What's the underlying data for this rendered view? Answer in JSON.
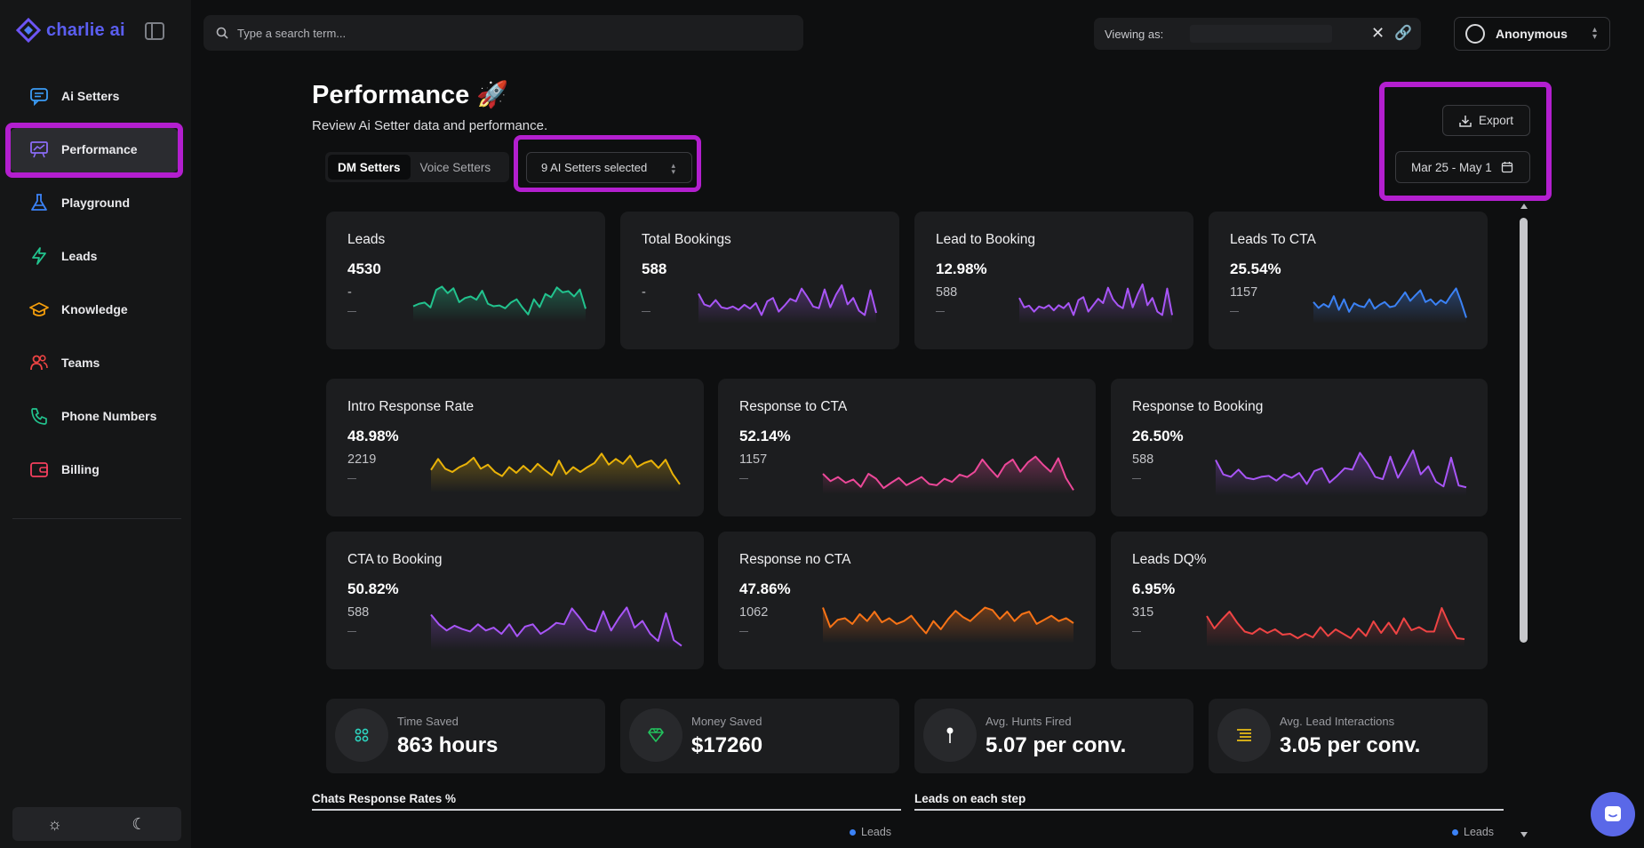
{
  "app": {
    "logo_text": "charlie ai"
  },
  "sidebar": {
    "items": [
      {
        "label": "Ai Setters",
        "icon": "chat-icon"
      },
      {
        "label": "Performance",
        "icon": "presentation-chart-icon"
      },
      {
        "label": "Playground",
        "icon": "flask-icon"
      },
      {
        "label": "Leads",
        "icon": "lightning-icon"
      },
      {
        "label": "Knowledge",
        "icon": "graduation-cap-icon"
      },
      {
        "label": "Teams",
        "icon": "users-icon"
      },
      {
        "label": "Phone Numbers",
        "icon": "phone-icon"
      },
      {
        "label": "Billing",
        "icon": "wallet-icon"
      }
    ],
    "active_index": 1
  },
  "search": {
    "placeholder": "Type a search term..."
  },
  "viewing": {
    "label": "Viewing as:"
  },
  "user": {
    "name": "Anonymous"
  },
  "page": {
    "title": "Performance",
    "subtitle": "Review Ai Setter data and performance.",
    "tabs": [
      "DM Setters",
      "Voice Setters"
    ],
    "active_tab": 0,
    "setters_selected": "9 AI Setters selected",
    "export_label": "Export",
    "date_range": "Mar 25 - May 1"
  },
  "stats_row1": [
    {
      "title": "Leads",
      "value": "4530",
      "sub": "-",
      "color": "#22c38e",
      "spark": [
        0.38,
        0.44,
        0.47,
        0.35,
        0.78,
        0.86,
        0.7,
        0.82,
        0.48,
        0.58,
        0.62,
        0.54,
        0.76,
        0.44,
        0.38,
        0.4,
        0.33,
        0.47,
        0.55,
        0.35,
        0.18,
        0.55,
        0.36,
        0.68,
        0.6,
        0.84,
        0.72,
        0.75,
        0.62,
        0.79,
        0.32
      ]
    },
    {
      "title": "Total Bookings",
      "value": "588",
      "sub": "-",
      "color": "#a855f7",
      "spark": [
        0.7,
        0.45,
        0.4,
        0.55,
        0.38,
        0.35,
        0.4,
        0.32,
        0.44,
        0.35,
        0.48,
        0.2,
        0.52,
        0.6,
        0.28,
        0.42,
        0.58,
        0.52,
        0.82,
        0.62,
        0.4,
        0.36,
        0.8,
        0.38,
        0.68,
        0.9,
        0.45,
        0.6,
        0.3,
        0.2,
        0.78,
        0.25
      ]
    },
    {
      "title": "Lead to Booking",
      "value": "12.98%",
      "sub": "588",
      "color": "#a855f7",
      "spark": [
        0.6,
        0.38,
        0.42,
        0.28,
        0.4,
        0.36,
        0.43,
        0.31,
        0.43,
        0.36,
        0.48,
        0.2,
        0.55,
        0.62,
        0.28,
        0.43,
        0.58,
        0.48,
        0.84,
        0.57,
        0.43,
        0.36,
        0.82,
        0.38,
        0.68,
        0.92,
        0.43,
        0.6,
        0.28,
        0.2,
        0.82,
        0.2
      ]
    },
    {
      "title": "Leads To CTA",
      "value": "25.54%",
      "sub": "1157",
      "color": "#3b82f6",
      "spark": [
        0.55,
        0.4,
        0.5,
        0.42,
        0.7,
        0.35,
        0.62,
        0.3,
        0.52,
        0.45,
        0.42,
        0.62,
        0.38,
        0.48,
        0.55,
        0.42,
        0.45,
        0.62,
        0.8,
        0.58,
        0.72,
        0.85,
        0.55,
        0.62,
        0.48,
        0.6,
        0.52,
        0.72,
        0.9,
        0.55,
        0.15
      ]
    }
  ],
  "stats_row2": [
    {
      "title": "Intro Response Rate",
      "value": "48.98%",
      "sub": "2219",
      "color": "#eab308",
      "spark": [
        0.55,
        0.82,
        0.58,
        0.5,
        0.62,
        0.7,
        0.85,
        0.58,
        0.68,
        0.5,
        0.4,
        0.62,
        0.48,
        0.65,
        0.5,
        0.7,
        0.55,
        0.42,
        0.78,
        0.45,
        0.62,
        0.5,
        0.62,
        0.72,
        0.95,
        0.68,
        0.82,
        0.7,
        0.9,
        0.62,
        0.72,
        0.78,
        0.6,
        0.8,
        0.45,
        0.2
      ]
    },
    {
      "title": "Response to CTA",
      "value": "52.14%",
      "sub": "1157",
      "color": "#ec4899",
      "spark": [
        0.5,
        0.32,
        0.42,
        0.28,
        0.36,
        0.18,
        0.5,
        0.38,
        0.15,
        0.28,
        0.4,
        0.22,
        0.32,
        0.42,
        0.25,
        0.22,
        0.38,
        0.3,
        0.48,
        0.42,
        0.55,
        0.85,
        0.62,
        0.42,
        0.72,
        0.85,
        0.55,
        0.78,
        0.92,
        0.72,
        0.55,
        0.88,
        0.4,
        0.1
      ]
    },
    {
      "title": "Response to Booking",
      "value": "26.50%",
      "sub": "588",
      "color": "#a855f7",
      "spark": [
        0.75,
        0.45,
        0.4,
        0.55,
        0.38,
        0.35,
        0.4,
        0.42,
        0.32,
        0.45,
        0.38,
        0.48,
        0.25,
        0.52,
        0.58,
        0.28,
        0.42,
        0.58,
        0.55,
        0.9,
        0.68,
        0.4,
        0.35,
        0.82,
        0.38,
        0.65,
        0.95,
        0.45,
        0.62,
        0.3,
        0.2,
        0.8,
        0.22,
        0.18
      ]
    }
  ],
  "stats_row3": [
    {
      "title": "CTA to Booking",
      "value": "50.82%",
      "sub": "588",
      "color": "#a855f7",
      "spark": [
        0.75,
        0.55,
        0.42,
        0.52,
        0.45,
        0.4,
        0.55,
        0.42,
        0.48,
        0.35,
        0.55,
        0.3,
        0.5,
        0.55,
        0.35,
        0.45,
        0.58,
        0.55,
        0.88,
        0.68,
        0.45,
        0.4,
        0.82,
        0.42,
        0.68,
        0.9,
        0.48,
        0.62,
        0.35,
        0.2,
        0.78,
        0.22,
        0.1
      ]
    },
    {
      "title": "Response no CTA",
      "value": "47.86%",
      "sub": "1062",
      "color": "#f97316",
      "spark": [
        0.88,
        0.4,
        0.58,
        0.62,
        0.48,
        0.72,
        0.55,
        0.78,
        0.52,
        0.62,
        0.48,
        0.55,
        0.68,
        0.45,
        0.25,
        0.55,
        0.35,
        0.6,
        0.8,
        0.65,
        0.55,
        0.72,
        0.88,
        0.82,
        0.6,
        0.78,
        0.55,
        0.72,
        0.78,
        0.48,
        0.58,
        0.68,
        0.55,
        0.62,
        0.5
      ]
    },
    {
      "title": "Leads DQ%",
      "value": "6.95%",
      "sub": "315",
      "color": "#ef4444",
      "spark": [
        0.7,
        0.42,
        0.62,
        0.8,
        0.55,
        0.35,
        0.3,
        0.42,
        0.32,
        0.4,
        0.28,
        0.3,
        0.2,
        0.3,
        0.22,
        0.45,
        0.25,
        0.4,
        0.3,
        0.2,
        0.42,
        0.25,
        0.58,
        0.32,
        0.55,
        0.3,
        0.65,
        0.38,
        0.45,
        0.35,
        0.35,
        0.88,
        0.5,
        0.2,
        0.18
      ]
    }
  ],
  "metrics": [
    {
      "label": "Time Saved",
      "value": "863 hours",
      "icon": "grid-icon",
      "color": "#2dd4bf"
    },
    {
      "label": "Money Saved",
      "value": "$17260",
      "icon": "diamond-icon",
      "color": "#22c55e"
    },
    {
      "label": "Avg. Hunts Fired",
      "value": "5.07 per conv.",
      "icon": "pin-icon",
      "color": "#ffffff"
    },
    {
      "label": "Avg. Lead Interactions",
      "value": "3.05 per conv.",
      "icon": "list-icon",
      "color": "#facc15"
    }
  ],
  "sections": {
    "chats_title": "Chats Response Rates %",
    "leads_title": "Leads on each step",
    "legend_label": "Leads"
  },
  "colors": {
    "highlight": "#b31fcf",
    "accent": "#5b5ef0"
  }
}
